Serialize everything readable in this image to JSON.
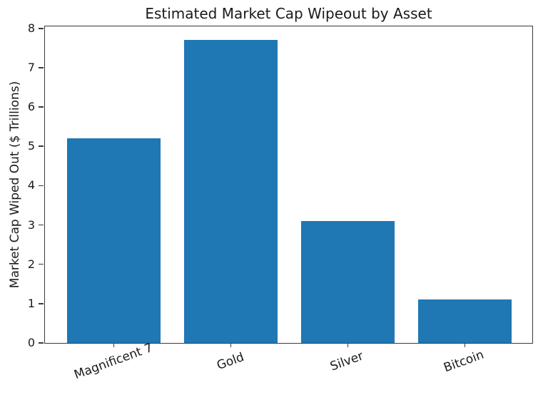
{
  "chart_data": {
    "type": "bar",
    "title": "Estimated Market Cap Wipeout by Asset",
    "xlabel": "",
    "ylabel": "Market Cap Wiped Out ($ Trillions)",
    "categories": [
      "Magnificent 7",
      "Gold",
      "Silver",
      "Bitcoin"
    ],
    "values": [
      5.2,
      7.7,
      3.1,
      1.1
    ],
    "yticks": [
      0,
      1,
      2,
      3,
      4,
      5,
      6,
      7,
      8
    ],
    "ylim": [
      0,
      8.085
    ],
    "xlim_units": 4.18,
    "first_bar_center_units": 0.59,
    "bar_width_units": 0.8,
    "bar_color": "#1f77b4",
    "text_color": "#1a1a1a",
    "spine_color": "#3a3a3a",
    "background_color": "#ffffff",
    "grid": false,
    "legend": null,
    "x_tick_rotation_deg": 20
  }
}
